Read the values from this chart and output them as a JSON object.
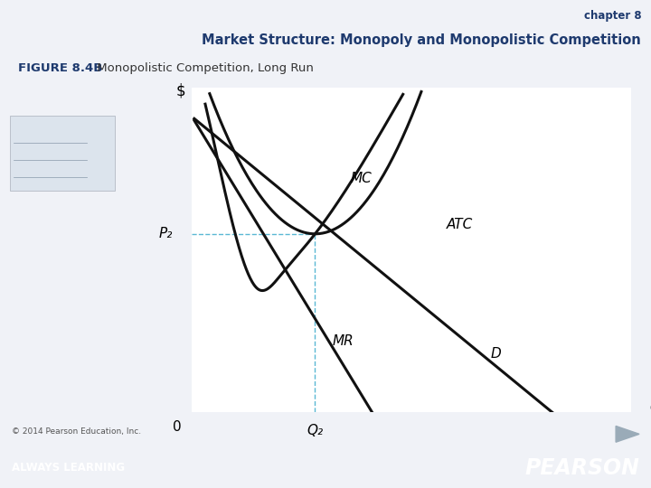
{
  "title_line1": "chapter 8",
  "title_line2": "Market Structure: Monopoly and Monopolistic Competition",
  "figure_label_bold": "FIGURE 8.4B",
  "figure_label_normal": " Monopolistic Competition, Long Run",
  "bg_color": "#f0f2f7",
  "plot_bg": "#ffffff",
  "footer_bg": "#2b4c8c",
  "footer_text_left": "ALWAYS LEARNING",
  "footer_text_right": "PEARSON",
  "copyright": "© 2014 Pearson Education, Inc.",
  "y_axis_label": "$",
  "x_axis_label": "Q",
  "origin_label": "0",
  "q2_label": "Q₂",
  "p2_label": "P₂",
  "mc_label": "MC",
  "atc_label": "ATC",
  "mr_label": "MR",
  "d_label": "D",
  "title_color": "#1e3a6e",
  "figure_label_color": "#1e3a6e",
  "curve_color": "#111111",
  "dashed_color": "#5bb8d4",
  "q2_x": 2.8,
  "p2_y": 5.5,
  "xlim": [
    0,
    10
  ],
  "ylim": [
    0,
    10
  ]
}
